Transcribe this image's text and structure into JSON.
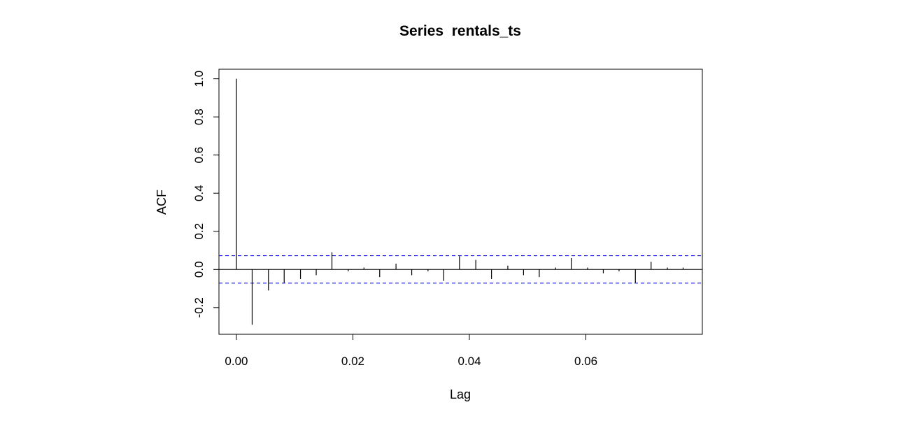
{
  "chart_data": {
    "type": "bar",
    "title": "Series  rentals_ts",
    "xlabel": "Lag",
    "ylabel": "ACF",
    "xlim": [
      -0.003,
      0.08
    ],
    "ylim": [
      -0.34,
      1.05
    ],
    "x_ticks": [
      {
        "value": 0.0,
        "label": "0.00"
      },
      {
        "value": 0.02,
        "label": "0.02"
      },
      {
        "value": 0.04,
        "label": "0.04"
      },
      {
        "value": 0.06,
        "label": "0.06"
      }
    ],
    "y_ticks": [
      {
        "value": -0.2,
        "label": "-0.2"
      },
      {
        "value": 0.0,
        "label": "0.0"
      },
      {
        "value": 0.2,
        "label": "0.2"
      },
      {
        "value": 0.4,
        "label": "0.4"
      },
      {
        "value": 0.6,
        "label": "0.6"
      },
      {
        "value": 0.8,
        "label": "0.8"
      },
      {
        "value": 1.0,
        "label": "1.0"
      }
    ],
    "lags": [
      0.0,
      0.0027,
      0.0055,
      0.0082,
      0.011,
      0.0137,
      0.0164,
      0.0192,
      0.0219,
      0.0246,
      0.0274,
      0.0301,
      0.0329,
      0.0356,
      0.0383,
      0.0411,
      0.0438,
      0.0466,
      0.0493,
      0.052,
      0.0548,
      0.0575,
      0.0603,
      0.063,
      0.0657,
      0.0685,
      0.0712,
      0.074,
      0.0767
    ],
    "acf": [
      1.0,
      -0.29,
      -0.11,
      -0.07,
      -0.05,
      -0.03,
      0.09,
      -0.01,
      0.01,
      -0.04,
      0.03,
      -0.03,
      -0.01,
      -0.06,
      0.07,
      0.05,
      -0.05,
      0.02,
      -0.03,
      -0.04,
      0.01,
      0.06,
      0.01,
      -0.02,
      -0.01,
      -0.07,
      0.04,
      0.01,
      0.01
    ],
    "confidence_limit": 0.072,
    "colors": {
      "bars": "#000000",
      "confidence": "#0000ff",
      "zero_line": "#000000",
      "frame": "#000000"
    }
  }
}
